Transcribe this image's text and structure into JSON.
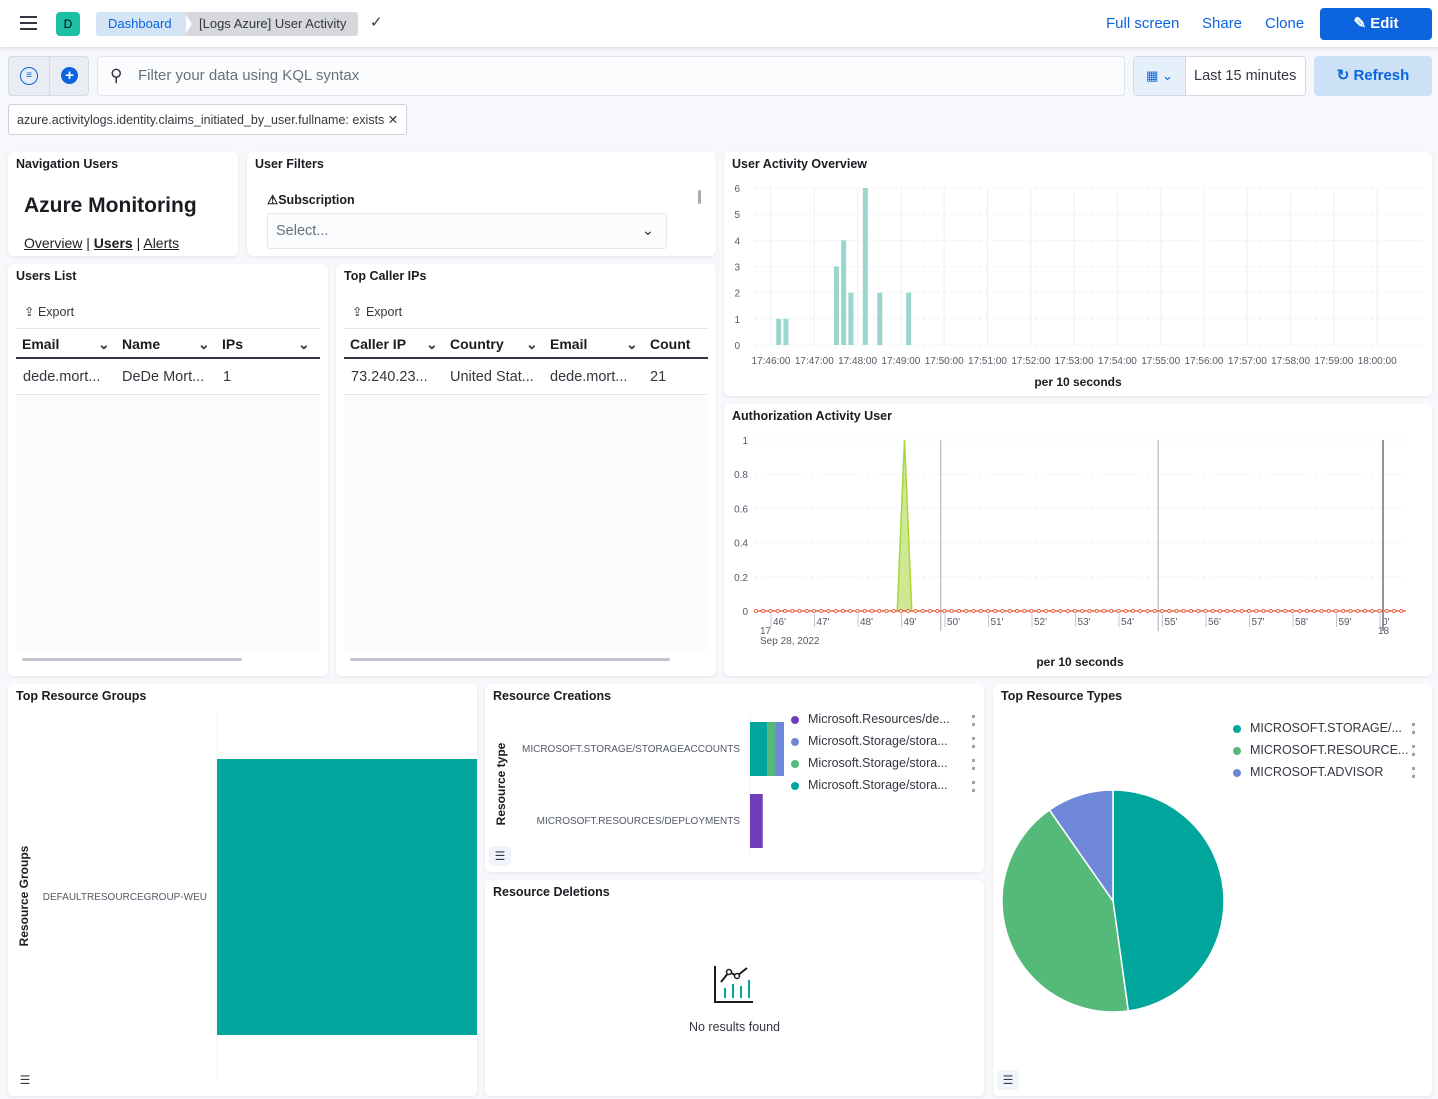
{
  "header": {
    "avatar_letter": "D",
    "breadcrumbs": [
      "Dashboard",
      "[Logs Azure] User Activity"
    ],
    "actions": {
      "full_screen": "Full screen",
      "share": "Share",
      "clone": "Clone",
      "edit": "Edit"
    }
  },
  "query": {
    "placeholder": "Filter your data using KQL syntax",
    "time_range": "Last 15 minutes",
    "refresh": "Refresh",
    "filters": [
      "azure.activitylogs.identity.claims_initiated_by_user.fullname: exists"
    ]
  },
  "panels": {
    "navigation": {
      "title": "Navigation Users",
      "heading": "Azure Monitoring",
      "links": [
        "Overview",
        "Users",
        "Alerts"
      ],
      "separator": "|"
    },
    "user_filters": {
      "title": "User Filters",
      "label": "Subscription",
      "placeholder": "Select..."
    },
    "users_list": {
      "title": "Users List",
      "export": "Export",
      "columns": [
        "Email",
        "Name",
        "IPs"
      ],
      "rows": [
        [
          "dede.mort...",
          "DeDe Mort...",
          "1"
        ]
      ]
    },
    "top_caller_ips": {
      "title": "Top Caller IPs",
      "export": "Export",
      "columns": [
        "Caller IP",
        "Country",
        "Email",
        "Count"
      ],
      "rows": [
        [
          "73.240.23...",
          "United Stat...",
          "dede.mort...",
          "21"
        ]
      ]
    },
    "top_resource_groups": {
      "title": "Top Resource Groups"
    },
    "resource_creations": {
      "title": "Resource Creations"
    },
    "resource_deletions": {
      "title": "Resource Deletions",
      "empty_text": "No results found"
    },
    "top_resource_types": {
      "title": "Top Resource Types"
    },
    "user_activity_overview": {
      "title": "User Activity Overview"
    },
    "authorization_activity": {
      "title": "Authorization Activity User"
    }
  },
  "chart_data": [
    {
      "id": "user_activity_overview",
      "type": "bar",
      "xlabel": "per 10 seconds",
      "ylim": [
        0,
        6
      ],
      "yticks": [
        "0",
        "1",
        "2",
        "3",
        "4",
        "5",
        "6"
      ],
      "xticks": [
        "17:46:00",
        "17:47:00",
        "17:48:00",
        "17:49:00",
        "17:50:00",
        "17:51:00",
        "17:52:00",
        "17:53:00",
        "17:54:00",
        "17:55:00",
        "17:56:00",
        "17:57:00",
        "17:58:00",
        "17:59:00",
        "18:00:00"
      ],
      "x": [
        "17:46:10",
        "17:46:20",
        "17:47:30",
        "17:47:40",
        "17:47:50",
        "17:48:10",
        "17:48:30",
        "17:49:10"
      ],
      "values": [
        1,
        1,
        3,
        4,
        2,
        6,
        2,
        2
      ],
      "color": "#9ad6cc",
      "grid": true
    },
    {
      "id": "authorization_activity",
      "type": "area",
      "xlabel": "per 10 seconds",
      "ylim": [
        0,
        1
      ],
      "yticks": [
        "0",
        "0.2",
        "0.4",
        "0.6",
        "0.8",
        "1"
      ],
      "xticks": [
        "46'",
        "47'",
        "48'",
        "49'",
        "50'",
        "51'",
        "52'",
        "53'",
        "54'",
        "55'",
        "56'",
        "57'",
        "58'",
        "59'",
        "0'"
      ],
      "x_sub_labels": [
        "17",
        "Sep 28, 2022",
        "18"
      ],
      "series": [
        {
          "color": "#a6d63a",
          "x": [
            "17:48:50",
            "17:49:00",
            "17:49:10"
          ],
          "values": [
            0,
            1,
            0
          ]
        },
        {
          "color": "#e7664c",
          "values_constant": 0
        }
      ],
      "markers": [
        "17:49:50",
        "17:54:50",
        "18:00:00"
      ],
      "grid": true
    },
    {
      "id": "top_resource_groups",
      "type": "bar",
      "orientation": "horizontal",
      "ylabel": "Resource Groups",
      "categories": [
        "DEFAULTRESOURCEGROUP-WEU"
      ],
      "values": [
        1
      ],
      "color": "#00a69b"
    },
    {
      "id": "resource_creations",
      "type": "bar",
      "orientation": "horizontal",
      "stacked": true,
      "ylabel": "Resource type",
      "categories": [
        "MICROSOFT.STORAGE/STORAGEACCOUNTS",
        "MICROSOFT.RESOURCES/DEPLOYMENTS"
      ],
      "series": [
        {
          "name": "Microsoft.Resources/de...",
          "color": "#6f3fba",
          "values": [
            0,
            1.5
          ]
        },
        {
          "name": "Microsoft.Storage/stora...",
          "color": "#6f87d8",
          "values": [
            1,
            0
          ]
        },
        {
          "name": "Microsoft.Storage/stora...",
          "color": "#54b979",
          "values": [
            1,
            0
          ]
        },
        {
          "name": "Microsoft.Storage/stora...",
          "color": "#00a69b",
          "values": [
            2,
            0
          ]
        }
      ],
      "legend": "right"
    },
    {
      "id": "top_resource_types",
      "type": "pie",
      "slices": [
        {
          "name": "MICROSOFT.STORAGE/...",
          "value": 47.8,
          "color": "#00a69b"
        },
        {
          "name": "MICROSOFT.RESOURCE...",
          "value": 42.5,
          "color": "#54b979"
        },
        {
          "name": "MICROSOFT.ADVISOR",
          "value": 9.7,
          "color": "#6f87d8"
        }
      ],
      "legend": "top-right"
    }
  ]
}
